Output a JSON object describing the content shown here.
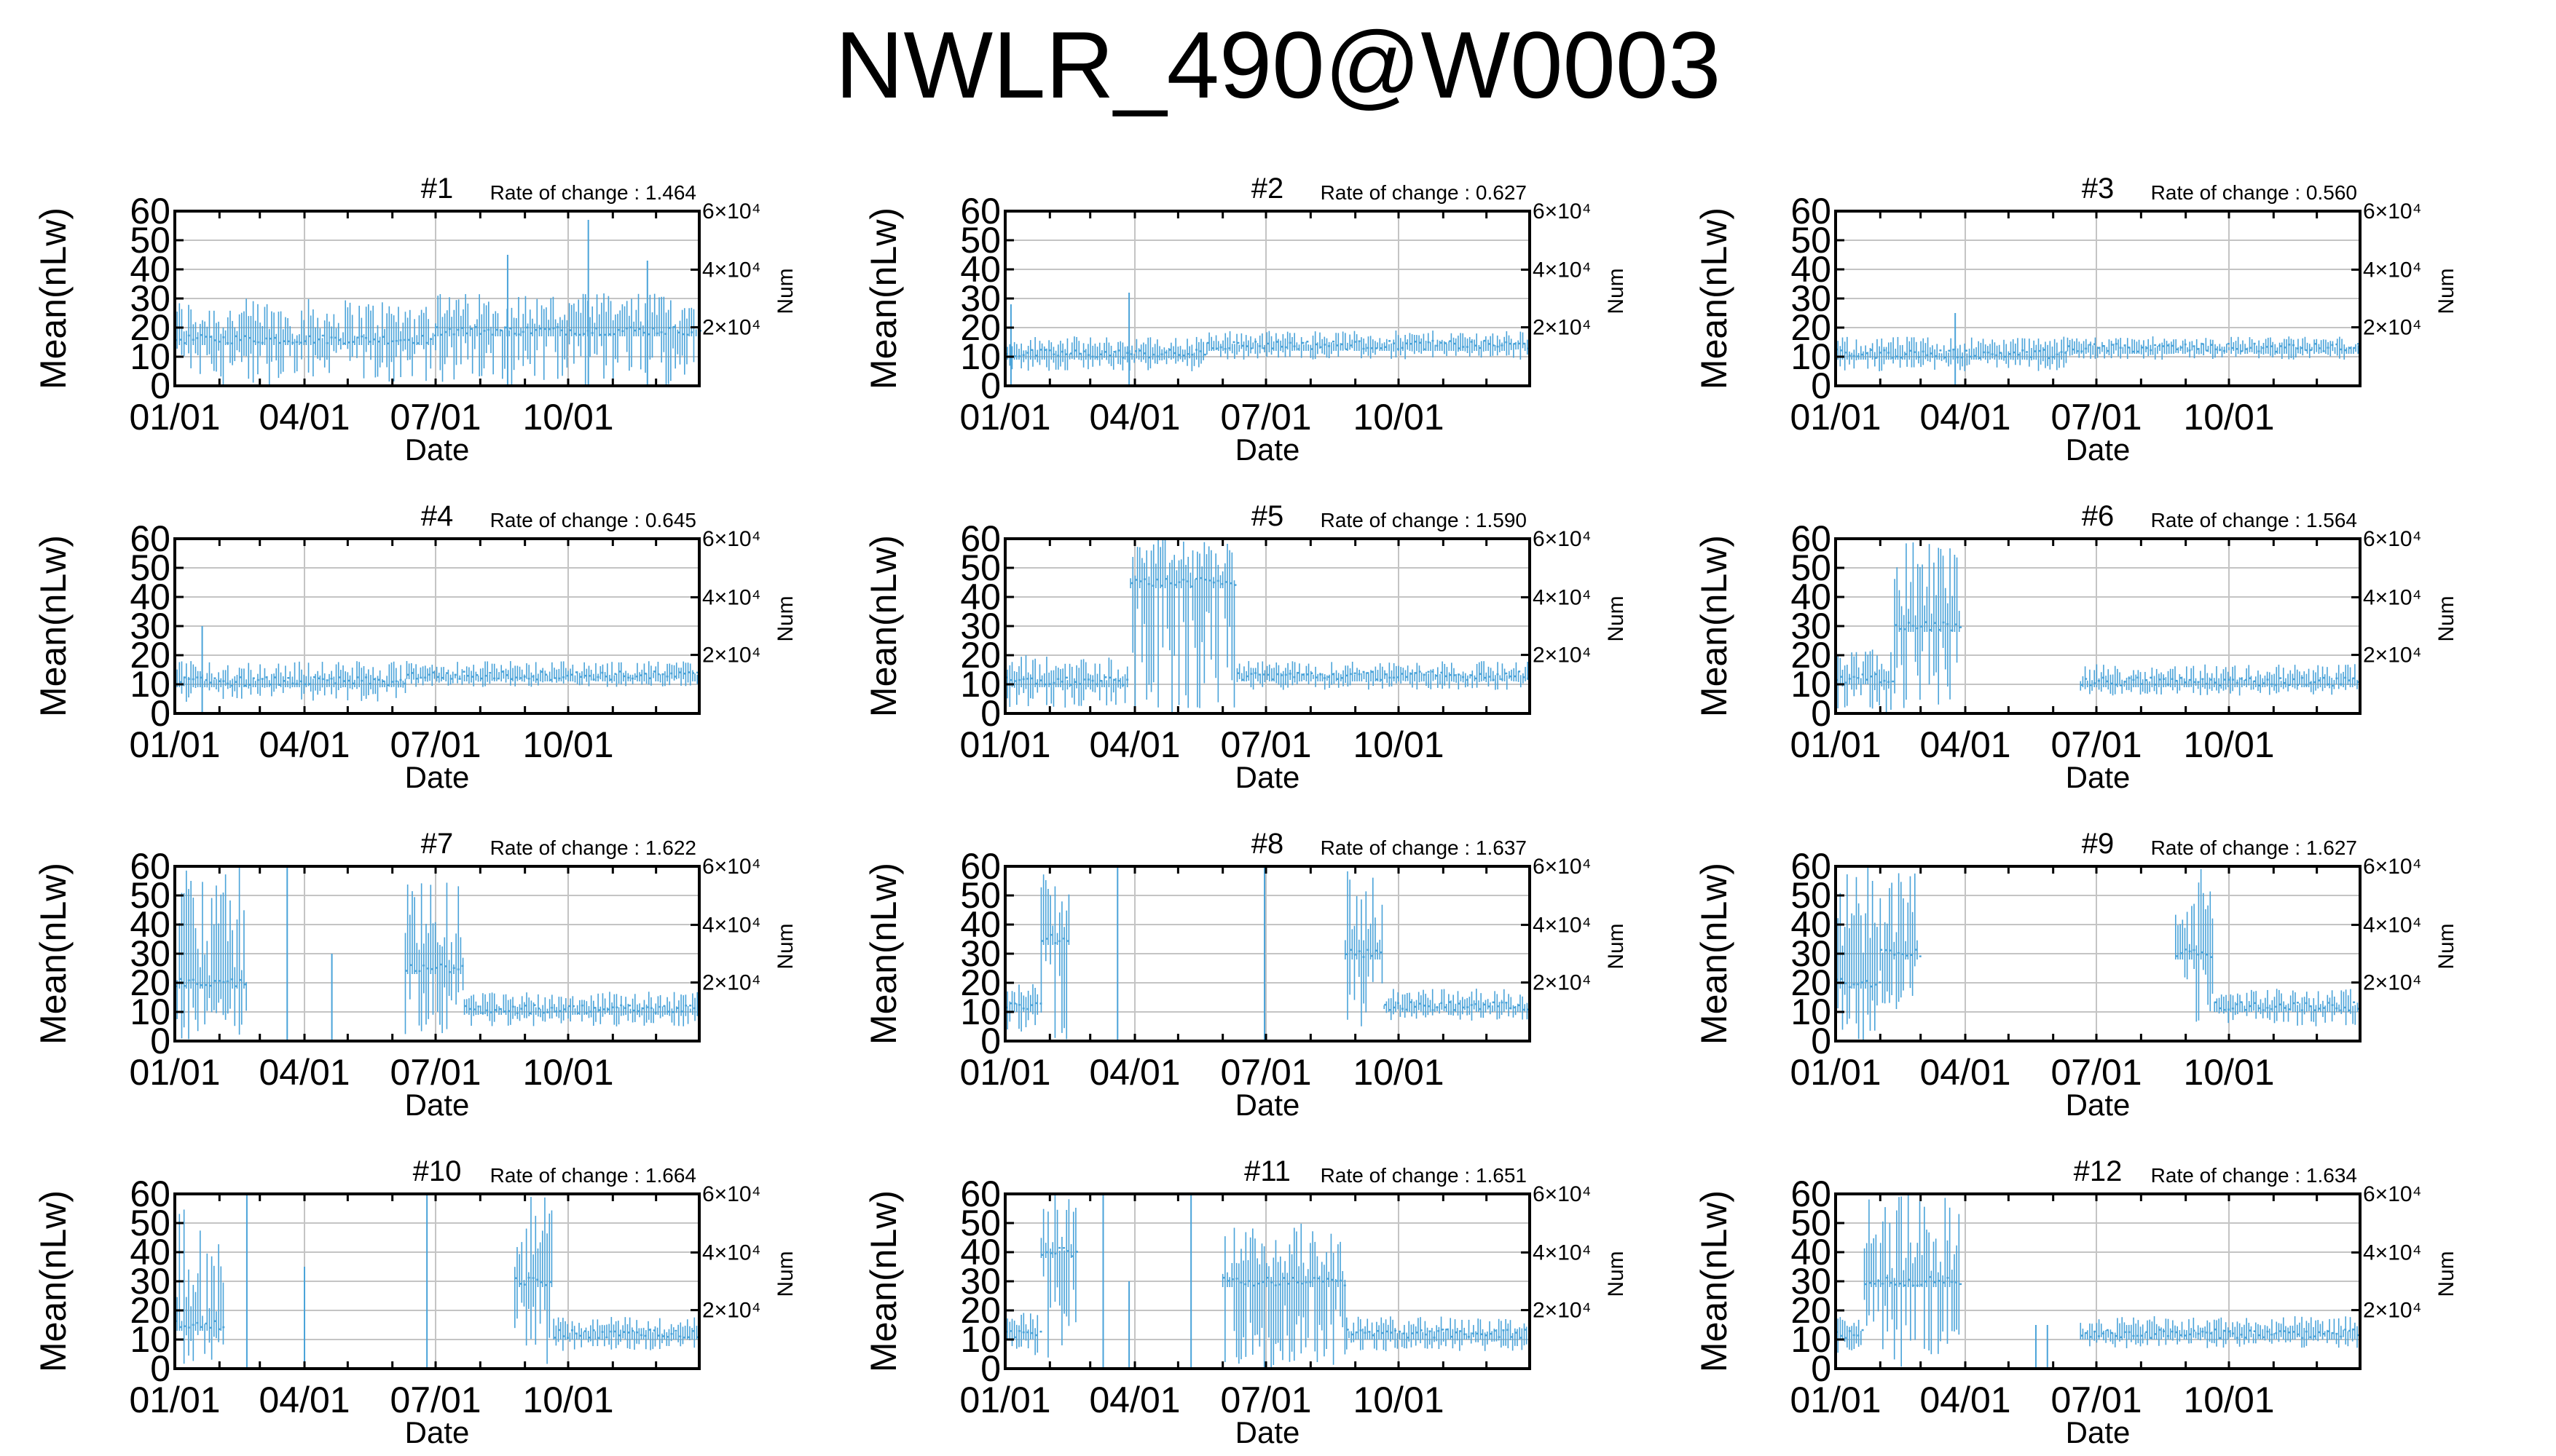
{
  "title": "NWLR_490@W0003",
  "colors": {
    "series": "#4aa3d9",
    "grid": "#c4c4c4",
    "axis": "#000000"
  },
  "chart_data": [
    {
      "type": "bar",
      "title": "#1",
      "annotation": "Rate of change : 1.464",
      "xlabel": "Date",
      "ylabel": "Mean(nLw)",
      "y2label": "Num",
      "ylim": [
        0,
        60
      ],
      "yticks": [
        0,
        10,
        20,
        30,
        40,
        50,
        60
      ],
      "y2ticks": [
        "2×10⁴",
        "4×10⁴",
        "6×10⁴"
      ],
      "xticks": [
        "01/01",
        "04/01",
        "07/01",
        "10/01"
      ],
      "grid": true,
      "series": [
        {
          "values": [
            {
              "x_start": "01/01",
              "x_end": "06/30",
              "mean": 16,
              "min": 0,
              "max": 30
            },
            {
              "x_start": "07/01",
              "x_end": "12/31",
              "mean": 19,
              "min": 0,
              "max": 32
            },
            {
              "x": "08/20",
              "value": 45
            },
            {
              "x": "10/15",
              "value": 57
            },
            {
              "x": "11/25",
              "value": 43
            }
          ]
        }
      ]
    },
    {
      "type": "bar",
      "title": "#2",
      "annotation": "Rate of change : 0.627",
      "xlabel": "Date",
      "ylabel": "Mean(nLw)",
      "y2label": "Num",
      "ylim": [
        0,
        60
      ],
      "yticks": [
        0,
        10,
        20,
        30,
        40,
        50,
        60
      ],
      "y2ticks": [
        "2×10⁴",
        "4×10⁴",
        "6×10⁴"
      ],
      "xticks": [
        "01/01",
        "04/01",
        "07/01",
        "10/01"
      ],
      "grid": true,
      "series": [
        {
          "values": [
            {
              "x_start": "01/01",
              "x_end": "05/20",
              "mean": 11,
              "min": 5,
              "max": 17
            },
            {
              "x_start": "05/21",
              "x_end": "12/31",
              "mean": 14,
              "min": 9,
              "max": 19
            },
            {
              "x": "01/05",
              "value": 28
            },
            {
              "x": "03/28",
              "value": 32
            }
          ]
        }
      ]
    },
    {
      "type": "bar",
      "title": "#3",
      "annotation": "Rate of change : 0.560",
      "xlabel": "Date",
      "ylabel": "Mean(nLw)",
      "y2label": "Num",
      "ylim": [
        0,
        60
      ],
      "yticks": [
        0,
        10,
        20,
        30,
        40,
        50,
        60
      ],
      "y2ticks": [
        "2×10⁴",
        "4×10⁴",
        "6×10⁴"
      ],
      "xticks": [
        "01/01",
        "04/01",
        "07/01",
        "10/01"
      ],
      "grid": true,
      "series": [
        {
          "values": [
            {
              "x_start": "01/01",
              "x_end": "06/10",
              "mean": 11,
              "min": 5,
              "max": 17
            },
            {
              "x_start": "06/11",
              "x_end": "12/31",
              "mean": 13,
              "min": 9,
              "max": 17
            },
            {
              "x": "03/25",
              "value": 25
            }
          ]
        }
      ]
    },
    {
      "type": "bar",
      "title": "#4",
      "annotation": "Rate of change : 0.645",
      "xlabel": "Date",
      "ylabel": "Mean(nLw)",
      "y2label": "Num",
      "ylim": [
        0,
        60
      ],
      "yticks": [
        0,
        10,
        20,
        30,
        40,
        50,
        60
      ],
      "y2ticks": [
        "2×10⁴",
        "4×10⁴",
        "6×10⁴"
      ],
      "xticks": [
        "01/01",
        "04/01",
        "07/01",
        "10/01"
      ],
      "grid": true,
      "series": [
        {
          "values": [
            {
              "x_start": "01/01",
              "x_end": "06/10",
              "mean": 11,
              "min": 4,
              "max": 18
            },
            {
              "x_start": "06/11",
              "x_end": "12/31",
              "mean": 13,
              "min": 9,
              "max": 18
            },
            {
              "x": "01/20",
              "value": 30
            }
          ]
        }
      ]
    },
    {
      "type": "bar",
      "title": "#5",
      "annotation": "Rate of change : 1.590",
      "xlabel": "Date",
      "ylabel": "Mean(nLw)",
      "y2label": "Num",
      "ylim": [
        0,
        60
      ],
      "yticks": [
        0,
        10,
        20,
        30,
        40,
        50,
        60
      ],
      "y2ticks": [
        "2×10⁴",
        "4×10⁴",
        "6×10⁴"
      ],
      "xticks": [
        "01/01",
        "04/01",
        "07/01",
        "10/01"
      ],
      "grid": true,
      "series": [
        {
          "values": [
            {
              "x_start": "01/01",
              "x_end": "03/28",
              "mean": 11,
              "min": 2,
              "max": 20
            },
            {
              "x_start": "03/29",
              "x_end": "06/10",
              "mean": 45,
              "min": 0,
              "max": 60
            },
            {
              "x_start": "06/11",
              "x_end": "12/31",
              "mean": 13,
              "min": 8,
              "max": 18
            }
          ]
        }
      ]
    },
    {
      "type": "bar",
      "title": "#6",
      "annotation": "Rate of change : 1.564",
      "xlabel": "Date",
      "ylabel": "Mean(nLw)",
      "y2label": "Num",
      "ylim": [
        0,
        60
      ],
      "yticks": [
        0,
        10,
        20,
        30,
        40,
        50,
        60
      ],
      "y2ticks": [
        "2×10⁴",
        "4×10⁴",
        "6×10⁴"
      ],
      "xticks": [
        "01/01",
        "04/01",
        "07/01",
        "10/01"
      ],
      "grid": true,
      "series": [
        {
          "values": [
            {
              "x_start": "01/01",
              "x_end": "02/10",
              "mean": 12,
              "min": 0,
              "max": 22
            },
            {
              "x_start": "02/11",
              "x_end": "03/28",
              "mean": 30,
              "min": 0,
              "max": 60
            },
            {
              "x_start": "06/20",
              "x_end": "12/31",
              "mean": 11,
              "min": 6,
              "max": 17
            }
          ]
        }
      ]
    },
    {
      "type": "bar",
      "title": "#7",
      "annotation": "Rate of change : 1.622",
      "xlabel": "Date",
      "ylabel": "Mean(nLw)",
      "y2label": "Num",
      "ylim": [
        0,
        60
      ],
      "yticks": [
        0,
        10,
        20,
        30,
        40,
        50,
        60
      ],
      "y2ticks": [
        "2×10⁴",
        "4×10⁴",
        "6×10⁴"
      ],
      "xticks": [
        "01/01",
        "04/01",
        "07/01",
        "10/01"
      ],
      "grid": true,
      "series": [
        {
          "values": [
            {
              "x_start": "01/01",
              "x_end": "02/20",
              "mean": 20,
              "min": 0,
              "max": 60
            },
            {
              "x": "03/20",
              "value": 60
            },
            {
              "x": "04/20",
              "value": 30
            },
            {
              "x_start": "06/10",
              "x_end": "07/20",
              "mean": 25,
              "min": 2,
              "max": 55
            },
            {
              "x_start": "07/21",
              "x_end": "12/31",
              "mean": 11,
              "min": 5,
              "max": 17
            }
          ]
        }
      ]
    },
    {
      "type": "bar",
      "title": "#8",
      "annotation": "Rate of change : 1.637",
      "xlabel": "Date",
      "ylabel": "Mean(nLw)",
      "y2label": "Num",
      "ylim": [
        0,
        60
      ],
      "yticks": [
        0,
        10,
        20,
        30,
        40,
        50,
        60
      ],
      "y2ticks": [
        "2×10⁴",
        "4×10⁴",
        "6×10⁴"
      ],
      "xticks": [
        "01/01",
        "04/01",
        "07/01",
        "10/01"
      ],
      "grid": true,
      "series": [
        {
          "values": [
            {
              "x_start": "01/01",
              "x_end": "01/25",
              "mean": 12,
              "min": 3,
              "max": 20
            },
            {
              "x_start": "01/26",
              "x_end": "02/15",
              "mean": 35,
              "min": 0,
              "max": 60
            },
            {
              "x": "03/20",
              "value": 60
            },
            {
              "x": "06/30",
              "value": 60
            },
            {
              "x_start": "08/25",
              "x_end": "09/20",
              "mean": 30,
              "min": 5,
              "max": 60
            },
            {
              "x_start": "09/21",
              "x_end": "12/31",
              "mean": 12,
              "min": 7,
              "max": 18
            }
          ]
        }
      ]
    },
    {
      "type": "bar",
      "title": "#9",
      "annotation": "Rate of change : 1.627",
      "xlabel": "Date",
      "ylabel": "Mean(nLw)",
      "y2label": "Num",
      "ylim": [
        0,
        60
      ],
      "yticks": [
        0,
        10,
        20,
        30,
        40,
        50,
        60
      ],
      "y2ticks": [
        "2×10⁴",
        "4×10⁴",
        "6×10⁴"
      ],
      "xticks": [
        "01/01",
        "04/01",
        "07/01",
        "10/01"
      ],
      "grid": true,
      "series": [
        {
          "values": [
            {
              "x_start": "01/01",
              "x_end": "01/31",
              "mean": 20,
              "min": 0,
              "max": 60
            },
            {
              "x_start": "02/01",
              "x_end": "02/28",
              "mean": 30,
              "min": 10,
              "max": 60
            },
            {
              "x_start": "08/25",
              "x_end": "09/20",
              "mean": 30,
              "min": 5,
              "max": 60
            },
            {
              "x_start": "09/21",
              "x_end": "12/31",
              "mean": 12,
              "min": 5,
              "max": 18
            }
          ]
        }
      ]
    },
    {
      "type": "bar",
      "title": "#10",
      "annotation": "Rate of change : 1.664",
      "xlabel": "Date",
      "ylabel": "Mean(nLw)",
      "y2label": "Num",
      "ylim": [
        0,
        60
      ],
      "yticks": [
        0,
        10,
        20,
        30,
        40,
        50,
        60
      ],
      "y2ticks": [
        "2×10⁴",
        "4×10⁴",
        "6×10⁴"
      ],
      "xticks": [
        "01/01",
        "04/01",
        "07/01",
        "10/01"
      ],
      "grid": true,
      "series": [
        {
          "values": [
            {
              "x_start": "01/01",
              "x_end": "02/05",
              "mean": 15,
              "min": 0,
              "max": 55
            },
            {
              "x": "02/20",
              "value": 60
            },
            {
              "x": "04/01",
              "value": 35
            },
            {
              "x": "06/25",
              "value": 60
            },
            {
              "x_start": "08/25",
              "x_end": "09/20",
              "mean": 30,
              "min": 0,
              "max": 60
            },
            {
              "x_start": "09/21",
              "x_end": "12/31",
              "mean": 12,
              "min": 6,
              "max": 18
            }
          ]
        }
      ]
    },
    {
      "type": "bar",
      "title": "#11",
      "annotation": "Rate of change : 1.651",
      "xlabel": "Date",
      "ylabel": "Mean(nLw)",
      "y2label": "Num",
      "ylim": [
        0,
        60
      ],
      "yticks": [
        0,
        10,
        20,
        30,
        40,
        50,
        60
      ],
      "y2ticks": [
        "2×10⁴",
        "4×10⁴",
        "6×10⁴"
      ],
      "xticks": [
        "01/01",
        "04/01",
        "07/01",
        "10/01"
      ],
      "grid": true,
      "series": [
        {
          "values": [
            {
              "x_start": "01/01",
              "x_end": "01/25",
              "mean": 12,
              "min": 4,
              "max": 20
            },
            {
              "x_start": "01/26",
              "x_end": "02/20",
              "mean": 40,
              "min": 0,
              "max": 60
            },
            {
              "x": "03/10",
              "value": 60
            },
            {
              "x": "03/28",
              "value": 30
            },
            {
              "x": "05/10",
              "value": 60
            },
            {
              "x_start": "06/01",
              "x_end": "08/25",
              "mean": 30,
              "min": 0,
              "max": 50
            },
            {
              "x_start": "08/26",
              "x_end": "12/31",
              "mean": 12,
              "min": 6,
              "max": 18
            }
          ]
        }
      ]
    },
    {
      "type": "bar",
      "title": "#12",
      "annotation": "Rate of change : 1.634",
      "xlabel": "Date",
      "ylabel": "Mean(nLw)",
      "y2label": "Num",
      "ylim": [
        0,
        60
      ],
      "yticks": [
        0,
        10,
        20,
        30,
        40,
        50,
        60
      ],
      "y2ticks": [
        "2×10⁴",
        "4×10⁴",
        "6×10⁴"
      ],
      "xticks": [
        "01/01",
        "04/01",
        "07/01",
        "10/01"
      ],
      "grid": true,
      "series": [
        {
          "values": [
            {
              "x_start": "01/01",
              "x_end": "01/20",
              "mean": 12,
              "min": 5,
              "max": 18
            },
            {
              "x_start": "01/21",
              "x_end": "03/28",
              "mean": 30,
              "min": 0,
              "max": 60
            },
            {
              "x": "05/20",
              "value": 15
            },
            {
              "x": "05/28",
              "value": 15
            },
            {
              "x_start": "06/20",
              "x_end": "12/31",
              "mean": 12,
              "min": 7,
              "max": 18
            }
          ]
        }
      ]
    }
  ]
}
